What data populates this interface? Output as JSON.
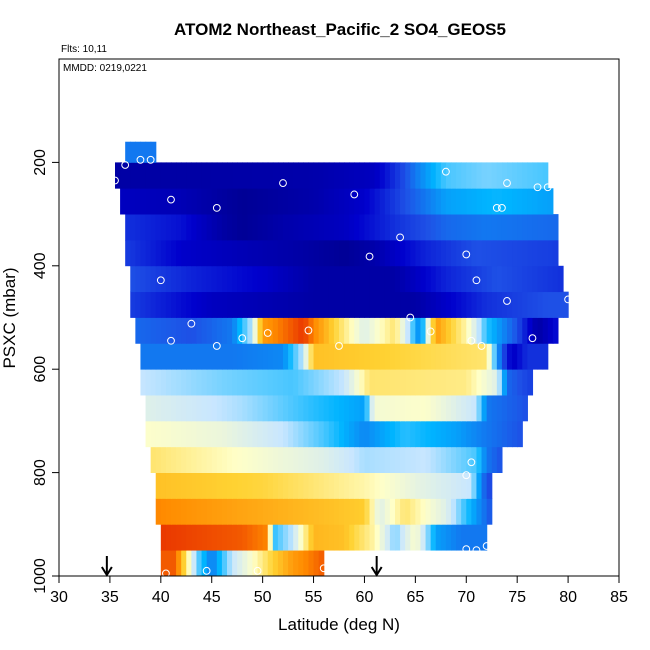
{
  "chart_data": {
    "type": "heatmap",
    "title": "ATOM2 Northeast_Pacific_2 SO4_GEOS5",
    "flights_note": "Flts: 10,11",
    "date_note": "MMDD: 0219,0221",
    "xlabel": "Latitude (deg N)",
    "ylabel": "PSXC (mbar)",
    "xlim": [
      30,
      85
    ],
    "ylim": [
      1000,
      0
    ],
    "x_ticks": [
      30,
      35,
      40,
      45,
      50,
      55,
      60,
      65,
      70,
      75,
      80,
      85
    ],
    "y_ticks": [
      200,
      400,
      600,
      800,
      1000
    ],
    "colormap": [
      "#00008b",
      "#0000cd",
      "#1e50e6",
      "#00b4ff",
      "#c8e6ff",
      "#ffffc8",
      "#ffd232",
      "#ff8c00",
      "#dc0000"
    ],
    "colormap_note": "values normalized 0 (dark blue) to 1 (red)",
    "rows": [
      {
        "p_top": 1000,
        "p_bot": 950,
        "x0": 40.0,
        "x1": 56.0,
        "stops": [
          [
            40.0,
            0.92
          ],
          [
            41.5,
            0.92
          ],
          [
            42.5,
            0.7
          ],
          [
            43.5,
            0.45
          ],
          [
            45.0,
            0.3
          ],
          [
            47.0,
            0.5
          ],
          [
            49.0,
            0.62
          ],
          [
            51.0,
            0.75
          ],
          [
            53.0,
            0.85
          ],
          [
            56.0,
            0.92
          ]
        ]
      },
      {
        "p_top": 950,
        "p_bot": 900,
        "x0": 40.0,
        "x1": 72.0,
        "stops": [
          [
            40.0,
            0.95
          ],
          [
            48.0,
            0.92
          ],
          [
            50.5,
            0.88
          ],
          [
            51.0,
            0.4
          ],
          [
            53.0,
            0.5
          ],
          [
            55.0,
            0.8
          ],
          [
            58.0,
            0.78
          ],
          [
            61.0,
            0.65
          ],
          [
            63.0,
            0.45
          ],
          [
            65.0,
            0.62
          ],
          [
            67.0,
            0.35
          ],
          [
            69.5,
            0.3
          ],
          [
            72.0,
            0.3
          ]
        ]
      },
      {
        "p_top": 900,
        "p_bot": 850,
        "x0": 39.5,
        "x1": 72.5,
        "stops": [
          [
            39.5,
            0.88
          ],
          [
            50.0,
            0.82
          ],
          [
            60.0,
            0.76
          ],
          [
            61.5,
            0.55
          ],
          [
            64.0,
            0.7
          ],
          [
            66.0,
            0.62
          ],
          [
            68.0,
            0.55
          ],
          [
            70.0,
            0.4
          ],
          [
            72.5,
            0.25
          ]
        ]
      },
      {
        "p_top": 850,
        "p_bot": 800,
        "x0": 39.5,
        "x1": 72.5,
        "stops": [
          [
            39.5,
            0.78
          ],
          [
            50.0,
            0.74
          ],
          [
            60.0,
            0.65
          ],
          [
            65.0,
            0.57
          ],
          [
            70.5,
            0.5
          ],
          [
            71.5,
            0.3
          ],
          [
            72.5,
            0.22
          ]
        ]
      },
      {
        "p_top": 800,
        "p_bot": 750,
        "x0": 39.0,
        "x1": 73.5,
        "stops": [
          [
            39.0,
            0.7
          ],
          [
            48.0,
            0.62
          ],
          [
            56.0,
            0.55
          ],
          [
            60.0,
            0.48
          ],
          [
            66.0,
            0.5
          ],
          [
            71.0,
            0.42
          ],
          [
            72.0,
            0.3
          ],
          [
            73.5,
            0.25
          ]
        ]
      },
      {
        "p_top": 750,
        "p_bot": 700,
        "x0": 38.5,
        "x1": 75.5,
        "stops": [
          [
            38.5,
            0.62
          ],
          [
            46.0,
            0.58
          ],
          [
            52.0,
            0.5
          ],
          [
            56.0,
            0.42
          ],
          [
            60.0,
            0.32
          ],
          [
            64.0,
            0.4
          ],
          [
            69.0,
            0.35
          ],
          [
            72.0,
            0.3
          ],
          [
            75.5,
            0.25
          ]
        ]
      },
      {
        "p_top": 700,
        "p_bot": 650,
        "x0": 38.5,
        "x1": 76.0,
        "stops": [
          [
            38.5,
            0.55
          ],
          [
            48.0,
            0.48
          ],
          [
            55.0,
            0.4
          ],
          [
            60.0,
            0.35
          ],
          [
            61.0,
            0.6
          ],
          [
            66.0,
            0.62
          ],
          [
            71.0,
            0.5
          ],
          [
            72.0,
            0.3
          ],
          [
            76.0,
            0.25
          ]
        ]
      },
      {
        "p_top": 650,
        "p_bot": 600,
        "x0": 38.0,
        "x1": 76.5,
        "stops": [
          [
            38.0,
            0.5
          ],
          [
            46.0,
            0.45
          ],
          [
            53.0,
            0.42
          ],
          [
            58.0,
            0.5
          ],
          [
            60.5,
            0.7
          ],
          [
            70.0,
            0.68
          ],
          [
            73.0,
            0.55
          ],
          [
            74.0,
            0.28
          ],
          [
            76.5,
            0.22
          ]
        ]
      },
      {
        "p_top": 600,
        "p_bot": 550,
        "x0": 38.0,
        "x1": 78.0,
        "stops": [
          [
            38.0,
            0.3
          ],
          [
            47.0,
            0.3
          ],
          [
            52.0,
            0.32
          ],
          [
            54.0,
            0.5
          ],
          [
            55.0,
            0.78
          ],
          [
            62.0,
            0.75
          ],
          [
            72.0,
            0.7
          ],
          [
            73.0,
            0.35
          ],
          [
            74.5,
            0.1
          ],
          [
            76.0,
            0.2
          ],
          [
            78.0,
            0.2
          ]
        ]
      },
      {
        "p_top": 550,
        "p_bot": 500,
        "x0": 37.5,
        "x1": 79.0,
        "stops": [
          [
            37.5,
            0.28
          ],
          [
            43.0,
            0.25
          ],
          [
            47.0,
            0.3
          ],
          [
            49.0,
            0.5
          ],
          [
            50.0,
            0.85
          ],
          [
            54.0,
            0.95
          ],
          [
            57.0,
            0.75
          ],
          [
            60.0,
            0.55
          ],
          [
            63.0,
            0.7
          ],
          [
            65.5,
            0.3
          ],
          [
            67.0,
            0.85
          ],
          [
            70.0,
            0.65
          ],
          [
            72.0,
            0.4
          ],
          [
            75.0,
            0.25
          ],
          [
            77.0,
            0.05
          ],
          [
            79.0,
            0.15
          ]
        ]
      },
      {
        "p_top": 500,
        "p_bot": 450,
        "x0": 37.0,
        "x1": 80.0,
        "stops": [
          [
            37.0,
            0.22
          ],
          [
            45.0,
            0.1
          ],
          [
            55.0,
            0.05
          ],
          [
            65.0,
            0.05
          ],
          [
            72.0,
            0.2
          ],
          [
            78.0,
            0.25
          ],
          [
            80.0,
            0.25
          ]
        ]
      },
      {
        "p_top": 450,
        "p_bot": 400,
        "x0": 37.0,
        "x1": 79.5,
        "stops": [
          [
            37.0,
            0.25
          ],
          [
            43.0,
            0.18
          ],
          [
            50.0,
            0.12
          ],
          [
            55.0,
            0.05
          ],
          [
            63.0,
            0.05
          ],
          [
            68.0,
            0.18
          ],
          [
            73.0,
            0.25
          ],
          [
            79.5,
            0.2
          ]
        ]
      },
      {
        "p_top": 400,
        "p_bot": 350,
        "x0": 36.5,
        "x1": 79.0,
        "stops": [
          [
            36.5,
            0.22
          ],
          [
            42.0,
            0.12
          ],
          [
            48.0,
            0.08
          ],
          [
            54.0,
            0.05
          ],
          [
            58.0,
            0.02
          ],
          [
            61.0,
            0.06
          ],
          [
            66.0,
            0.18
          ],
          [
            71.0,
            0.25
          ],
          [
            79.0,
            0.22
          ]
        ]
      },
      {
        "p_top": 350,
        "p_bot": 300,
        "x0": 36.5,
        "x1": 79.0,
        "stops": [
          [
            36.5,
            0.2
          ],
          [
            42.0,
            0.15
          ],
          [
            46.0,
            0.05
          ],
          [
            48.0,
            0.02
          ],
          [
            52.0,
            0.06
          ],
          [
            58.0,
            0.1
          ],
          [
            63.0,
            0.2
          ],
          [
            68.0,
            0.28
          ],
          [
            72.0,
            0.3
          ],
          [
            79.0,
            0.28
          ]
        ]
      },
      {
        "p_top": 300,
        "p_bot": 250,
        "x0": 36.0,
        "x1": 78.5,
        "stops": [
          [
            36.0,
            0.1
          ],
          [
            42.0,
            0.08
          ],
          [
            46.0,
            0.04
          ],
          [
            48.0,
            0.02
          ],
          [
            55.0,
            0.06
          ],
          [
            60.0,
            0.12
          ],
          [
            64.0,
            0.25
          ],
          [
            68.0,
            0.35
          ],
          [
            73.0,
            0.38
          ],
          [
            78.5,
            0.35
          ]
        ]
      },
      {
        "p_top": 250,
        "p_bot": 200,
        "x0": 35.5,
        "x1": 78.0,
        "stops": [
          [
            35.5,
            0.05
          ],
          [
            45.0,
            0.05
          ],
          [
            55.0,
            0.06
          ],
          [
            61.0,
            0.1
          ],
          [
            65.0,
            0.3
          ],
          [
            68.0,
            0.42
          ],
          [
            72.0,
            0.45
          ],
          [
            78.0,
            0.42
          ]
        ]
      },
      {
        "p_top": 200,
        "p_bot": 160,
        "x0": 36.5,
        "x1": 39.5,
        "stops": [
          [
            36.5,
            0.3
          ],
          [
            39.5,
            0.3
          ]
        ]
      }
    ],
    "points": [
      [
        35.5,
        235
      ],
      [
        36.5,
        205
      ],
      [
        38.0,
        195
      ],
      [
        39.0,
        195
      ],
      [
        41.0,
        272
      ],
      [
        52.0,
        240
      ],
      [
        45.5,
        288
      ],
      [
        59.0,
        262
      ],
      [
        63.5,
        345
      ],
      [
        68.0,
        218
      ],
      [
        73.5,
        288
      ],
      [
        74.0,
        240
      ],
      [
        77.0,
        248
      ],
      [
        78.0,
        248
      ],
      [
        73.0,
        288
      ],
      [
        40.0,
        428
      ],
      [
        60.5,
        382
      ],
      [
        70.0,
        378
      ],
      [
        71.0,
        428
      ],
      [
        74.0,
        468
      ],
      [
        80.0,
        465
      ],
      [
        43.0,
        512
      ],
      [
        64.5,
        500
      ],
      [
        66.5,
        527
      ],
      [
        41.0,
        545
      ],
      [
        45.5,
        555
      ],
      [
        48.0,
        540
      ],
      [
        50.5,
        530
      ],
      [
        54.5,
        525
      ],
      [
        57.5,
        555
      ],
      [
        70.5,
        545
      ],
      [
        71.5,
        555
      ],
      [
        76.5,
        540
      ],
      [
        70.5,
        780
      ],
      [
        70.0,
        805
      ],
      [
        70.0,
        948
      ],
      [
        71.0,
        950
      ],
      [
        72.0,
        942
      ],
      [
        40.5,
        995
      ],
      [
        44.5,
        990
      ],
      [
        49.5,
        990
      ],
      [
        56.0,
        985
      ]
    ],
    "arrows_at_latitude": [
      34.7,
      61.2
    ]
  }
}
